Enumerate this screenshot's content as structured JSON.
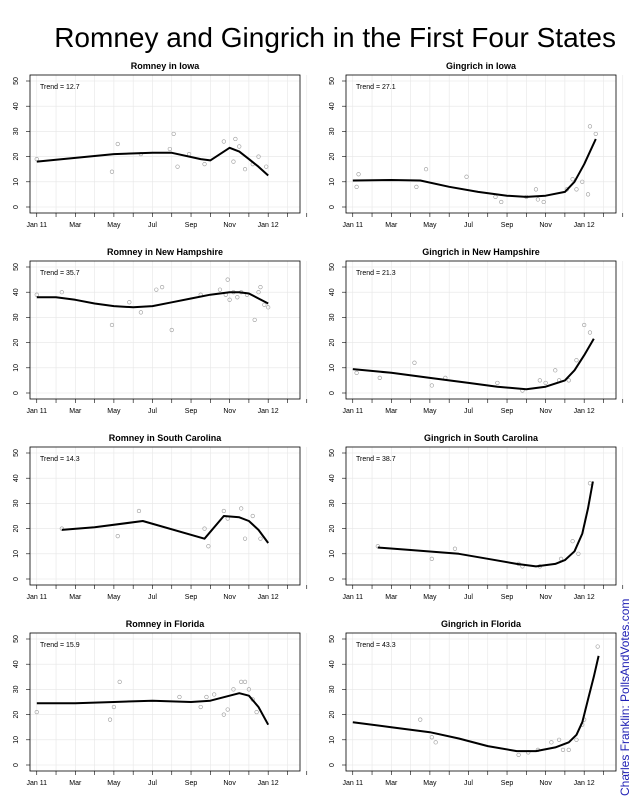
{
  "page": {
    "title": "Romney and Gingrich in the First Four States",
    "credit": "Charles Franklin: PollsAndVotes.com"
  },
  "chart_data": [
    {
      "type": "scatter",
      "title": "Romney in Iowa",
      "trend_label": "Trend = 12.7",
      "ylim": [
        0,
        50
      ],
      "yticks": [
        0,
        10,
        20,
        30,
        40,
        50
      ],
      "xticks": [
        "Jan 11",
        "Mar",
        "May",
        "Jul",
        "Sep",
        "Nov",
        "Jan 12"
      ],
      "points": [
        [
          0,
          19
        ],
        [
          3.9,
          14
        ],
        [
          4.2,
          25
        ],
        [
          5.4,
          21
        ],
        [
          6.9,
          23
        ],
        [
          7.1,
          29
        ],
        [
          7.3,
          16
        ],
        [
          7.9,
          21
        ],
        [
          8.7,
          17
        ],
        [
          9.7,
          26
        ],
        [
          10.2,
          18
        ],
        [
          10.3,
          27
        ],
        [
          10.5,
          24
        ],
        [
          10.8,
          15
        ],
        [
          11.2,
          17
        ],
        [
          11.5,
          20
        ],
        [
          11.9,
          16
        ]
      ],
      "trend": [
        [
          0,
          18
        ],
        [
          2,
          19.5
        ],
        [
          4,
          21
        ],
        [
          6,
          21.5
        ],
        [
          7,
          21.5
        ],
        [
          8.5,
          19
        ],
        [
          9,
          18.5
        ],
        [
          10,
          23.5
        ],
        [
          10.5,
          22
        ],
        [
          11,
          19
        ],
        [
          11.5,
          16
        ],
        [
          12,
          12.5
        ]
      ]
    },
    {
      "type": "scatter",
      "title": "Gingrich in Iowa",
      "trend_label": "Trend = 27.1",
      "ylim": [
        0,
        50
      ],
      "yticks": [
        0,
        10,
        20,
        30,
        40,
        50
      ],
      "xticks": [
        "Jan 11",
        "Mar",
        "May",
        "Jul",
        "Sep",
        "Nov",
        "Jan 12"
      ],
      "points": [
        [
          0.2,
          8
        ],
        [
          0.3,
          13
        ],
        [
          3.3,
          8
        ],
        [
          3.8,
          15
        ],
        [
          5.9,
          12
        ],
        [
          7.4,
          4
        ],
        [
          7.7,
          2
        ],
        [
          9.0,
          4
        ],
        [
          9.5,
          7
        ],
        [
          9.6,
          3
        ],
        [
          9.9,
          2
        ],
        [
          11.1,
          7
        ],
        [
          11.4,
          11
        ],
        [
          11.6,
          7
        ],
        [
          11.9,
          10
        ],
        [
          12.2,
          5
        ],
        [
          12.3,
          32
        ],
        [
          12.6,
          29
        ]
      ],
      "trend": [
        [
          0,
          10.5
        ],
        [
          2,
          10.7
        ],
        [
          3.5,
          10.5
        ],
        [
          5,
          8
        ],
        [
          6.5,
          6
        ],
        [
          8,
          4.5
        ],
        [
          9,
          4
        ],
        [
          10,
          4.5
        ],
        [
          11,
          6
        ],
        [
          11.5,
          10
        ],
        [
          12,
          17
        ],
        [
          12.3,
          22
        ],
        [
          12.6,
          27
        ]
      ]
    },
    {
      "type": "scatter",
      "title": "Romney in New Hampshire",
      "trend_label": "Trend = 35.7",
      "ylim": [
        0,
        50
      ],
      "yticks": [
        0,
        10,
        20,
        30,
        40,
        50
      ],
      "xticks": [
        "Jan 11",
        "Mar",
        "May",
        "Jul",
        "Sep",
        "Nov",
        "Jan 12"
      ],
      "points": [
        [
          0,
          39
        ],
        [
          1.3,
          40
        ],
        [
          3.9,
          27
        ],
        [
          4.8,
          36
        ],
        [
          5.4,
          32
        ],
        [
          6.2,
          41
        ],
        [
          6.5,
          42
        ],
        [
          7.0,
          25
        ],
        [
          8.5,
          39
        ],
        [
          9.5,
          41
        ],
        [
          9.8,
          39
        ],
        [
          9.9,
          45
        ],
        [
          10.0,
          37
        ],
        [
          10.2,
          40
        ],
        [
          10.4,
          38
        ],
        [
          10.6,
          40
        ],
        [
          10.9,
          39
        ],
        [
          11.3,
          29
        ],
        [
          11.5,
          40
        ],
        [
          11.6,
          42
        ],
        [
          11.8,
          35
        ],
        [
          12.0,
          34
        ]
      ],
      "trend": [
        [
          0,
          38
        ],
        [
          1,
          38
        ],
        [
          2,
          37
        ],
        [
          3,
          35.5
        ],
        [
          4,
          34.5
        ],
        [
          5,
          34
        ],
        [
          6,
          34.5
        ],
        [
          7,
          36
        ],
        [
          8,
          37.5
        ],
        [
          9,
          39
        ],
        [
          10,
          40
        ],
        [
          10.5,
          40
        ],
        [
          11,
          39.5
        ],
        [
          11.5,
          37.5
        ],
        [
          12,
          35.5
        ]
      ]
    },
    {
      "type": "scatter",
      "title": "Gingrich in New Hampshire",
      "trend_label": "Trend = 21.3",
      "ylim": [
        0,
        50
      ],
      "yticks": [
        0,
        10,
        20,
        30,
        40,
        50
      ],
      "xticks": [
        "Jan 11",
        "Mar",
        "May",
        "Jul",
        "Sep",
        "Nov",
        "Jan 12"
      ],
      "points": [
        [
          0.2,
          8
        ],
        [
          1.4,
          6
        ],
        [
          3.2,
          12
        ],
        [
          4.1,
          3
        ],
        [
          4.8,
          6
        ],
        [
          7.5,
          4
        ],
        [
          8.8,
          1
        ],
        [
          9.7,
          5
        ],
        [
          10.0,
          4
        ],
        [
          10.5,
          9
        ],
        [
          10.7,
          5
        ],
        [
          11.2,
          5
        ],
        [
          11.6,
          13
        ],
        [
          12.0,
          27
        ],
        [
          12.3,
          24
        ]
      ],
      "trend": [
        [
          0,
          9.5
        ],
        [
          2,
          8
        ],
        [
          4,
          6
        ],
        [
          6,
          4
        ],
        [
          7.5,
          2.5
        ],
        [
          9,
          1.5
        ],
        [
          10,
          2.5
        ],
        [
          11,
          5
        ],
        [
          11.5,
          9
        ],
        [
          12,
          15
        ],
        [
          12.5,
          21.5
        ]
      ]
    },
    {
      "type": "scatter",
      "title": "Romney in South Carolina",
      "trend_label": "Trend = 14.3",
      "ylim": [
        0,
        50
      ],
      "yticks": [
        0,
        10,
        20,
        30,
        40,
        50
      ],
      "xticks": [
        "Jan 11",
        "Mar",
        "May",
        "Jul",
        "Sep",
        "Nov",
        "Jan 12"
      ],
      "points": [
        [
          1.3,
          20
        ],
        [
          4.2,
          17
        ],
        [
          5.3,
          27
        ],
        [
          8.7,
          20
        ],
        [
          8.9,
          13
        ],
        [
          9.7,
          27
        ],
        [
          9.9,
          24
        ],
        [
          10.6,
          28
        ],
        [
          10.8,
          16
        ],
        [
          11.2,
          25
        ],
        [
          11.6,
          16
        ]
      ],
      "trend": [
        [
          1.3,
          19.5
        ],
        [
          3,
          20.5
        ],
        [
          5.5,
          23
        ],
        [
          8.7,
          16
        ],
        [
          9.7,
          25
        ],
        [
          10.5,
          24.5
        ],
        [
          11,
          23
        ],
        [
          11.5,
          19.5
        ],
        [
          12,
          14.3
        ]
      ]
    },
    {
      "type": "scatter",
      "title": "Gingrich in South Carolina",
      "trend_label": "Trend = 38.7",
      "ylim": [
        0,
        50
      ],
      "yticks": [
        0,
        10,
        20,
        30,
        40,
        50
      ],
      "xticks": [
        "Jan 11",
        "Mar",
        "May",
        "Jul",
        "Sep",
        "Nov",
        "Jan 12"
      ],
      "points": [
        [
          1.3,
          13
        ],
        [
          4.1,
          8
        ],
        [
          5.3,
          12
        ],
        [
          8.6,
          6
        ],
        [
          8.8,
          5
        ],
        [
          9.7,
          5
        ],
        [
          10.8,
          8
        ],
        [
          11.4,
          15
        ],
        [
          11.7,
          10
        ],
        [
          12.3,
          38
        ]
      ],
      "trend": [
        [
          1.3,
          12.5
        ],
        [
          3,
          11.5
        ],
        [
          5.5,
          10
        ],
        [
          7,
          8
        ],
        [
          8.5,
          6
        ],
        [
          9.5,
          5
        ],
        [
          10.5,
          6
        ],
        [
          11,
          7.5
        ],
        [
          11.5,
          11
        ],
        [
          11.9,
          18
        ],
        [
          12.2,
          28
        ],
        [
          12.45,
          38.7
        ]
      ]
    },
    {
      "type": "scatter",
      "title": "Romney in Florida",
      "trend_label": "Trend = 15.9",
      "ylim": [
        0,
        50
      ],
      "yticks": [
        0,
        10,
        20,
        30,
        40,
        50
      ],
      "xticks": [
        "Jan 11",
        "Mar",
        "May",
        "Jul",
        "Sep",
        "Nov",
        "Jan 12"
      ],
      "points": [
        [
          0,
          21
        ],
        [
          3.8,
          18
        ],
        [
          4.0,
          23
        ],
        [
          4.3,
          33
        ],
        [
          7.4,
          27
        ],
        [
          8.5,
          23
        ],
        [
          8.8,
          27
        ],
        [
          9.2,
          28
        ],
        [
          9.7,
          20
        ],
        [
          9.9,
          22
        ],
        [
          10.2,
          30
        ],
        [
          10.6,
          33
        ],
        [
          10.8,
          33
        ],
        [
          11.0,
          30
        ],
        [
          11.2,
          26
        ],
        [
          11.4,
          21
        ]
      ],
      "trend": [
        [
          0,
          24.5
        ],
        [
          2,
          24.5
        ],
        [
          4,
          25
        ],
        [
          6,
          25.5
        ],
        [
          8,
          25
        ],
        [
          9,
          25.5
        ],
        [
          10,
          27.5
        ],
        [
          10.5,
          28.5
        ],
        [
          11,
          27.5
        ],
        [
          11.5,
          23
        ],
        [
          12,
          16
        ]
      ]
    },
    {
      "type": "scatter",
      "title": "Gingrich in Florida",
      "trend_label": "Trend = 43.3",
      "ylim": [
        0,
        50
      ],
      "yticks": [
        0,
        10,
        20,
        30,
        40,
        50
      ],
      "xticks": [
        "Jan 11",
        "Mar",
        "May",
        "Jul",
        "Sep",
        "Nov",
        "Jan 12"
      ],
      "points": [
        [
          3.5,
          18
        ],
        [
          4.1,
          11
        ],
        [
          4.3,
          9
        ],
        [
          8.6,
          4
        ],
        [
          9.1,
          5
        ],
        [
          9.6,
          6
        ],
        [
          10.3,
          9
        ],
        [
          10.7,
          10
        ],
        [
          10.9,
          6
        ],
        [
          11.2,
          6
        ],
        [
          11.6,
          10
        ],
        [
          11.9,
          16
        ],
        [
          12.0,
          18
        ],
        [
          12.7,
          47
        ]
      ],
      "trend": [
        [
          0,
          17
        ],
        [
          2,
          15
        ],
        [
          4,
          13
        ],
        [
          5.5,
          10.5
        ],
        [
          7,
          7.5
        ],
        [
          8.5,
          5.5
        ],
        [
          9.5,
          5.5
        ],
        [
          10.5,
          7
        ],
        [
          11.2,
          9
        ],
        [
          11.6,
          12
        ],
        [
          11.9,
          17
        ],
        [
          12.2,
          26
        ],
        [
          12.5,
          35
        ],
        [
          12.75,
          43.3
        ]
      ]
    }
  ]
}
